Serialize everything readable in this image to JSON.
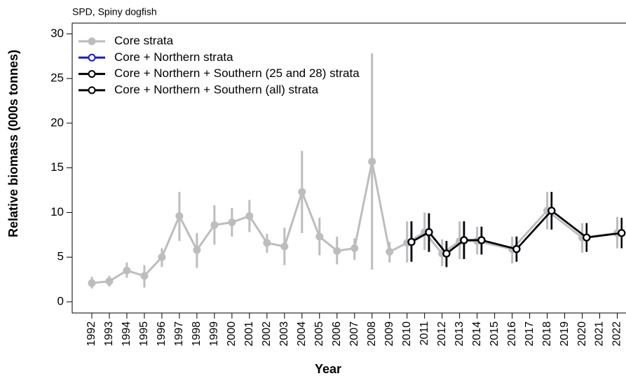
{
  "chart_data": {
    "type": "line",
    "title": "SPD, Spiny dogfish",
    "x_label": "Year",
    "y_label": "Relative biomass (000s tonnes)",
    "xlim": [
      1990.88,
      2022.5
    ],
    "ylim": [
      -1.25,
      31.2
    ],
    "xticks": [
      1992,
      1993,
      1994,
      1995,
      1996,
      1997,
      1998,
      1999,
      2000,
      2001,
      2002,
      2003,
      2004,
      2005,
      2006,
      2007,
      2008,
      2009,
      2010,
      2011,
      2012,
      2013,
      2014,
      2015,
      2016,
      2017,
      2018,
      2019,
      2020,
      2021,
      2022
    ],
    "yticks": [
      0,
      5,
      10,
      15,
      20,
      25,
      30
    ],
    "legend": "top-left",
    "series": [
      {
        "name": "Core strata",
        "color": "#bdbdbd",
        "x": [
          1992,
          1993,
          1994,
          1995,
          1996,
          1997,
          1998,
          1999,
          2000,
          2001,
          2002,
          2003,
          2004,
          2005,
          2006,
          2007,
          2008,
          2009,
          2010,
          2011,
          2012,
          2013,
          2014,
          2016,
          2018,
          2020,
          2022
        ],
        "values": [
          2.1,
          2.3,
          3.5,
          2.9,
          5.0,
          9.6,
          5.8,
          8.6,
          8.9,
          9.6,
          6.6,
          6.2,
          12.3,
          7.3,
          5.7,
          6.0,
          15.7,
          5.6,
          6.6,
          7.8,
          5.4,
          6.8,
          6.8,
          5.9,
          10.2,
          7.2,
          7.7
        ],
        "lower": [
          1.5,
          1.7,
          2.7,
          1.6,
          3.9,
          6.8,
          3.8,
          6.4,
          7.3,
          7.8,
          5.5,
          4.1,
          7.7,
          5.2,
          4.2,
          4.7,
          3.6,
          4.4,
          4.4,
          5.8,
          4.0,
          4.8,
          5.3,
          4.3,
          8.1,
          5.5,
          6.0
        ],
        "upper": [
          2.8,
          2.9,
          4.4,
          4.1,
          6.0,
          12.3,
          7.7,
          10.8,
          10.5,
          11.4,
          7.6,
          8.3,
          16.9,
          9.4,
          7.3,
          7.1,
          27.8,
          6.7,
          9.0,
          10.0,
          7.0,
          9.0,
          8.4,
          7.3,
          12.3,
          8.8,
          9.5
        ]
      },
      {
        "name": "Core + Northern strata",
        "color": "#1a1adb",
        "x": [
          2010,
          2011,
          2012,
          2013,
          2014,
          2016,
          2018,
          2020,
          2022
        ],
        "values": [
          6.7,
          7.8,
          5.4,
          6.9,
          6.9,
          5.9,
          10.2,
          7.2,
          7.7
        ],
        "lower": [
          4.5,
          5.6,
          3.9,
          4.8,
          5.3,
          4.5,
          8.1,
          5.6,
          6.0
        ],
        "upper": [
          9.0,
          9.9,
          6.8,
          9.0,
          8.4,
          7.3,
          12.3,
          8.8,
          9.4
        ]
      },
      {
        "name": "Core + Northern + Southern (25 and 28) strata",
        "color": "#000000",
        "x": [
          2010,
          2011,
          2012,
          2013,
          2014,
          2016,
          2018,
          2020,
          2022
        ],
        "values": [
          6.7,
          7.8,
          5.4,
          6.9,
          6.9,
          5.9,
          10.2,
          7.2,
          7.7
        ],
        "lower": [
          4.5,
          5.6,
          3.9,
          4.8,
          5.3,
          4.5,
          8.1,
          5.6,
          6.0
        ],
        "upper": [
          9.0,
          9.9,
          6.8,
          9.0,
          8.4,
          7.3,
          12.3,
          8.8,
          9.4
        ]
      },
      {
        "name": "Core + Northern + Southern (all) strata",
        "color": "#000000",
        "x": [
          2010,
          2011,
          2012,
          2013,
          2014,
          2016,
          2018,
          2020,
          2022
        ],
        "values": [
          6.7,
          7.8,
          5.4,
          6.9,
          6.9,
          5.9,
          10.2,
          7.2,
          7.7
        ],
        "lower": [
          4.5,
          5.6,
          3.9,
          4.8,
          5.3,
          4.5,
          8.1,
          5.6,
          6.0
        ],
        "upper": [
          9.0,
          9.9,
          6.8,
          9.0,
          8.4,
          7.3,
          12.3,
          8.8,
          9.4
        ]
      }
    ]
  }
}
